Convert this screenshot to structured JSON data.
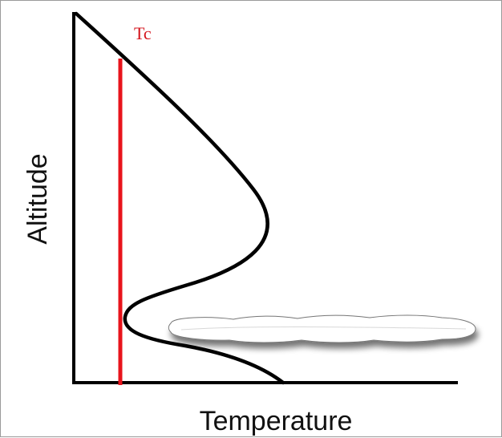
{
  "axes": {
    "y_label": "Altitude",
    "x_label": "Temperature"
  },
  "critical_temperature": {
    "label": "Tc"
  },
  "colors": {
    "curve": "#000000",
    "critical_line": "#e8141c",
    "critical_label": "#d4141c",
    "cloud_fill": "#ffffff",
    "cloud_shadow": "#9a9a9a"
  },
  "elements": {
    "cloud_icon": "cloud-icon"
  }
}
